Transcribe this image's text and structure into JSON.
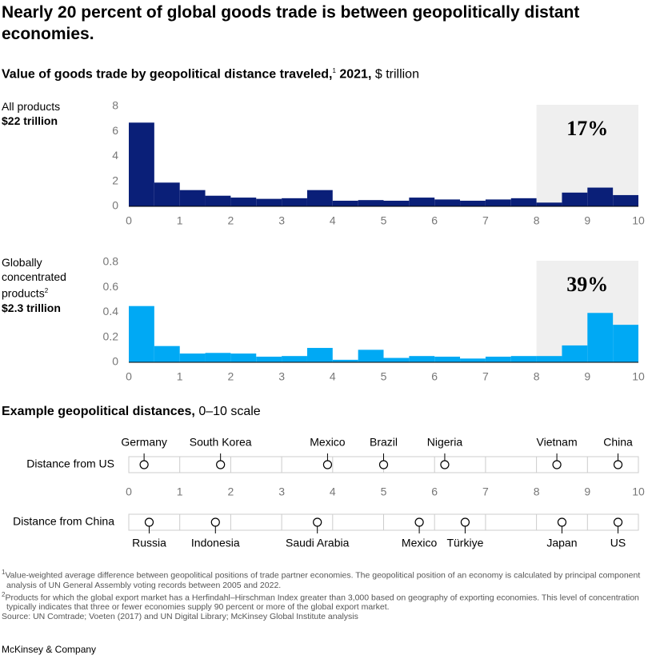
{
  "title": "Nearly 20 percent of global goods trade is between geopolitically distant economies.",
  "subtitle": "Value of goods trade by geopolitical distance traveled,",
  "subtitle_note": "1",
  "subtitle_year": "2021,",
  "subtitle_unit": "$ trillion",
  "chart_data": [
    {
      "type": "histogram",
      "label": "All products",
      "total": "$22 trillion",
      "color": "#0a1f78",
      "bins": [
        0,
        0.5,
        1,
        1.5,
        2,
        2.5,
        3,
        3.5,
        4,
        4.5,
        5,
        5.5,
        6,
        6.5,
        7,
        7.5,
        8,
        8.5,
        9,
        9.5,
        10
      ],
      "values": [
        6.7,
        1.9,
        1.3,
        0.85,
        0.7,
        0.6,
        0.65,
        1.3,
        0.45,
        0.5,
        0.45,
        0.7,
        0.55,
        0.45,
        0.55,
        0.65,
        0.3,
        1.1,
        1.5,
        0.9
      ],
      "xlim": [
        0,
        10
      ],
      "xticks": [
        0,
        1,
        2,
        3,
        4,
        5,
        6,
        7,
        8,
        9,
        10
      ],
      "ylim": [
        0,
        8
      ],
      "yticks": [
        0,
        2,
        4,
        6,
        8
      ],
      "highlight": {
        "from": 8,
        "to": 10,
        "annotation": "17%"
      }
    },
    {
      "type": "histogram",
      "label": "Globally concentrated products",
      "label_note": "2",
      "total": "$2.3 trillion",
      "color": "#00a9f4",
      "bins": [
        0,
        0.5,
        1,
        1.5,
        2,
        2.5,
        3,
        3.5,
        4,
        4.5,
        5,
        5.5,
        6,
        6.5,
        7,
        7.5,
        8,
        8.5,
        9,
        9.5,
        10
      ],
      "values": [
        0.45,
        0.13,
        0.07,
        0.075,
        0.07,
        0.045,
        0.05,
        0.115,
        0.02,
        0.1,
        0.035,
        0.05,
        0.045,
        0.03,
        0.045,
        0.05,
        0.05,
        0.135,
        0.395,
        0.3
      ],
      "xlim": [
        0,
        10
      ],
      "xticks": [
        0,
        1,
        2,
        3,
        4,
        5,
        6,
        7,
        8,
        9,
        10
      ],
      "ylim": [
        0,
        0.8
      ],
      "yticks": [
        0,
        0.2,
        0.4,
        0.6,
        0.8
      ],
      "highlight": {
        "from": 8,
        "to": 10,
        "annotation": "39%"
      }
    },
    {
      "type": "dot",
      "title": "Example geopolitical distances,",
      "subtitle": "0–10 scale",
      "xlim": [
        0,
        10
      ],
      "xticks": [
        0,
        1,
        2,
        3,
        4,
        5,
        6,
        7,
        8,
        9,
        10
      ],
      "rows": [
        {
          "name": "Distance from US",
          "points": [
            {
              "label": "Germany",
              "value": 0.3
            },
            {
              "label": "South Korea",
              "value": 1.8
            },
            {
              "label": "Mexico",
              "value": 3.9
            },
            {
              "label": "Brazil",
              "value": 5.0
            },
            {
              "label": "Nigeria",
              "value": 6.2
            },
            {
              "label": "Vietnam",
              "value": 8.4
            },
            {
              "label": "China",
              "value": 9.6
            }
          ]
        },
        {
          "name": "Distance from China",
          "points": [
            {
              "label": "Russia",
              "value": 0.4
            },
            {
              "label": "Indonesia",
              "value": 1.7
            },
            {
              "label": "Saudi Arabia",
              "value": 3.7
            },
            {
              "label": "Mexico",
              "value": 5.7
            },
            {
              "label": "Türkiye",
              "value": 6.6
            },
            {
              "label": "Japan",
              "value": 8.5
            },
            {
              "label": "US",
              "value": 9.6
            }
          ]
        }
      ]
    }
  ],
  "footnotes": [
    {
      "mark": "1",
      "text": "Value-weighted average difference between geopolitical positions of trade partner economies. The geopolitical position of an economy is calculated by principal component analysis of UN General Assembly voting records between 2005 and 2022."
    },
    {
      "mark": "2",
      "text": "Products for which the global export market has a Herfindahl–Hirschman Index greater than 3,000 based on geography of exporting economies. This level of concentration typically indicates that three or fewer economies supply 90 percent or more of the global export market."
    }
  ],
  "source": "Source: UN Comtrade; Voeten (2017) and UN Digital Library; McKinsey Global Institute analysis",
  "brand": "McKinsey & Company"
}
